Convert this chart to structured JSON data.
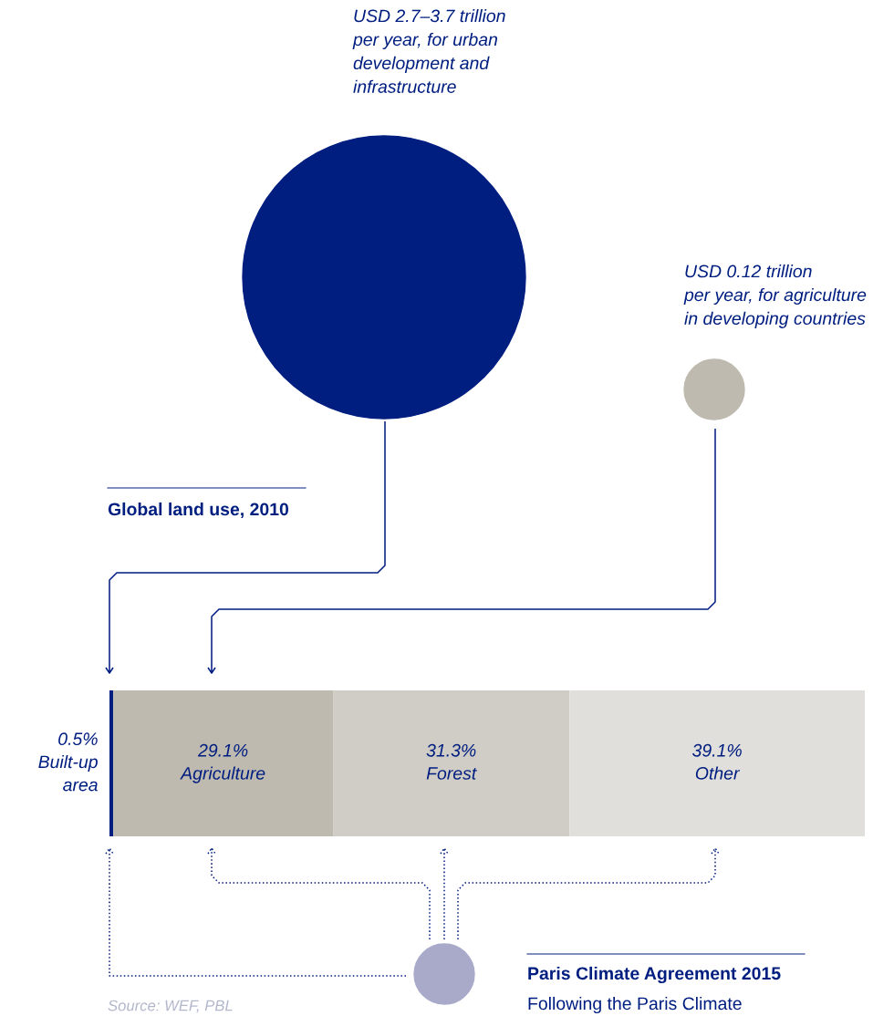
{
  "chart_data": [
    {
      "type": "other",
      "annotations": [
        "USD 2.7–3.7 trillion\nper year, for urban\ndevelopment and\ninfrastructure",
        "USD 0.12 trillion\nper year, for agriculture\nin developing countries"
      ]
    },
    {
      "type": "bar",
      "orientation": "horizontal",
      "stacked": true,
      "title": "Global land use, 2010",
      "categories": [
        null
      ],
      "xlim": [
        0,
        100
      ],
      "tick_labels": false,
      "series": [
        {
          "name": "Built-up area",
          "color": "#001e80",
          "values": [
            0.5
          ],
          "value_labels": [
            "0.5%"
          ]
        },
        {
          "name": "Agriculture",
          "color": "#bfbab0",
          "values": [
            29.1
          ],
          "value_labels": [
            "29.1%"
          ]
        },
        {
          "name": "Forest",
          "color": "#d0cdc6",
          "values": [
            31.3
          ],
          "value_labels": [
            "31.3%"
          ]
        },
        {
          "name": "Other",
          "color": "#e0dfdb",
          "values": [
            39.1
          ],
          "value_labels": [
            "39.1%"
          ]
        }
      ],
      "annotations": [
        "Paris Climate Agreement 2015",
        "Following the Paris Climate",
        "Source: WEF, PBL"
      ]
    }
  ]
}
